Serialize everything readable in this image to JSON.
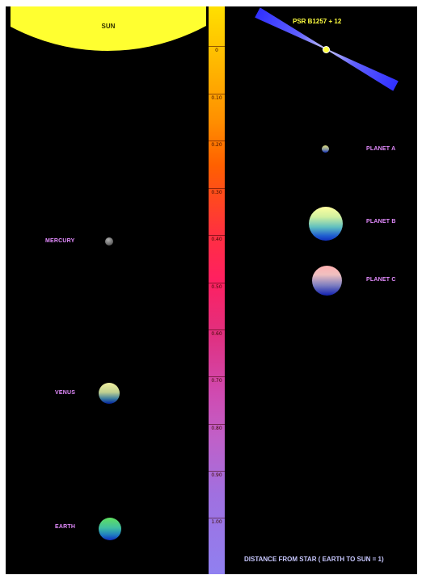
{
  "solar_system": {
    "sun_label": "SUN",
    "planets": [
      {
        "name": "MERCURY"
      },
      {
        "name": "VENUS"
      },
      {
        "name": "EARTH"
      }
    ]
  },
  "pulsar_system": {
    "star_label": "PSR B1257 + 12",
    "planets": [
      {
        "name": "PLANET A"
      },
      {
        "name": "PLANET B"
      },
      {
        "name": "PLANET C"
      }
    ]
  },
  "scale": {
    "ticks": [
      "0",
      "0.10",
      "0.20",
      "0.30",
      "0.40",
      "0.50",
      "0.60",
      "0.70",
      "0.80",
      "0.90",
      "1.00"
    ]
  },
  "axis_title": "DISTANCE FROM STAR ( EARTH TO SUN = 1)",
  "colors": {
    "label": "#e48cff",
    "sun": "#ffff30",
    "pulsar_label": "#ffff40",
    "axis_title": "#c8c8ff",
    "background": "#000000"
  }
}
